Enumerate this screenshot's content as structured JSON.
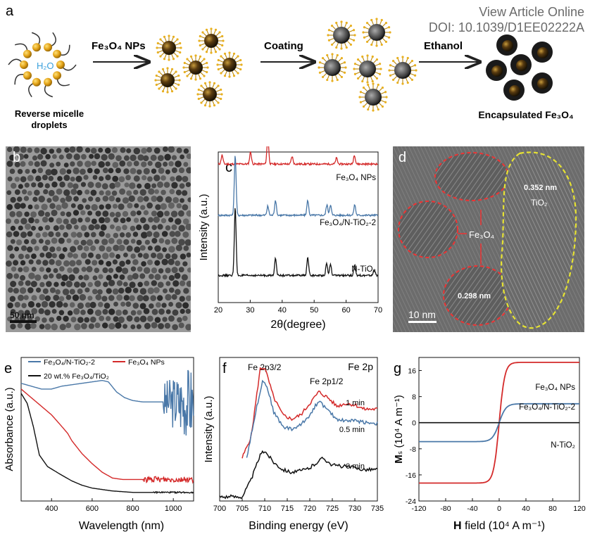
{
  "header": {
    "view_article": "View Article Online",
    "doi": "DOI: 10.1039/D1EE02222A"
  },
  "panel_a": {
    "letter": "a",
    "water_label": "H₂O",
    "arrow1_label": "Fe₃O₄ NPs",
    "arrow2_label": "Coating",
    "arrow3_label": "Ethanol",
    "caption_left_line1": "Reverse micelle",
    "caption_left_line2": "droplets",
    "caption_right": "Encapsulated Fe₃O₄"
  },
  "panel_b": {
    "letter": "b",
    "scale_bar": "50 nm"
  },
  "panel_d": {
    "letter": "d",
    "d1": "0.352 nm",
    "tio2": "TiO₂",
    "fe3o4": "Fe₃O₄",
    "d2": "0.298 nm",
    "scale_bar": "10 nm"
  },
  "colors": {
    "red": "#d42a2a",
    "blue": "#4a78a8",
    "black": "#111111",
    "yellow": "#e6e233"
  },
  "chart_data": [
    {
      "id": "c",
      "type": "line",
      "panel_letter": "c",
      "xlabel": "2θ(degree)",
      "ylabel": "Intensity (a.u.)",
      "xlim": [
        20,
        70
      ],
      "x_ticks": [
        20,
        30,
        40,
        50,
        60,
        70
      ],
      "series": [
        {
          "name": "Fe₃O₄ NPs",
          "color": "#d42a2a",
          "baseline": 0.92,
          "peaks": [
            [
              21.2,
              0.06
            ],
            [
              30.1,
              0.08
            ],
            [
              35.5,
              0.18
            ],
            [
              43.1,
              0.05
            ],
            [
              57.0,
              0.04
            ],
            [
              62.6,
              0.06
            ]
          ]
        },
        {
          "name": "Fe₃O₄/N-TiO₂-2",
          "color": "#4a78a8",
          "baseline": 0.58,
          "peaks": [
            [
              25.3,
              0.4
            ],
            [
              35.5,
              0.06
            ],
            [
              37.9,
              0.1
            ],
            [
              48.0,
              0.1
            ],
            [
              54.0,
              0.07
            ],
            [
              55.1,
              0.07
            ],
            [
              62.7,
              0.07
            ]
          ]
        },
        {
          "name": "N-TiO₂",
          "color": "#111111",
          "baseline": 0.18,
          "peaks": [
            [
              25.3,
              0.45
            ],
            [
              37.9,
              0.12
            ],
            [
              48.0,
              0.12
            ],
            [
              53.9,
              0.08
            ],
            [
              55.1,
              0.08
            ],
            [
              62.7,
              0.07
            ],
            [
              68.8,
              0.04
            ]
          ]
        }
      ]
    },
    {
      "id": "e",
      "type": "line",
      "panel_letter": "e",
      "xlabel": "Wavelength (nm)",
      "ylabel": "Absorbance (a.u.)",
      "xlim": [
        250,
        1100
      ],
      "x_ticks": [
        400,
        600,
        800,
        1000
      ],
      "legend": [
        "Fe₃O₄/N-TiO₂-2",
        "Fe₃O₄ NPs",
        "20 wt.% Fe₃O₄/TiO₂"
      ],
      "series": [
        {
          "name": "Fe₃O₄/N-TiO₂-2",
          "color": "#4a78a8",
          "points": [
            [
              250,
              0.82
            ],
            [
              300,
              0.8
            ],
            [
              350,
              0.78
            ],
            [
              400,
              0.78
            ],
            [
              450,
              0.8
            ],
            [
              500,
              0.81
            ],
            [
              550,
              0.82
            ],
            [
              600,
              0.83
            ],
            [
              650,
              0.84
            ],
            [
              680,
              0.83
            ],
            [
              720,
              0.76
            ],
            [
              760,
              0.72
            ],
            [
              800,
              0.7
            ],
            [
              850,
              0.69
            ],
            [
              900,
              0.69
            ],
            [
              950,
              0.69
            ]
          ],
          "noise_from": 950,
          "noise_amp": 0.14
        },
        {
          "name": "Fe₃O₄ NPs",
          "color": "#d42a2a",
          "points": [
            [
              250,
              0.78
            ],
            [
              300,
              0.72
            ],
            [
              350,
              0.66
            ],
            [
              400,
              0.6
            ],
            [
              450,
              0.52
            ],
            [
              480,
              0.47
            ],
            [
              500,
              0.42
            ],
            [
              550,
              0.33
            ],
            [
              600,
              0.26
            ],
            [
              650,
              0.2
            ],
            [
              700,
              0.16
            ],
            [
              750,
              0.15
            ],
            [
              800,
              0.15
            ],
            [
              900,
              0.15
            ],
            [
              1000,
              0.15
            ],
            [
              1100,
              0.15
            ]
          ],
          "noise_from": 850,
          "noise_amp": 0.02
        },
        {
          "name": "20 wt.% Fe₃O₄/TiO₂",
          "color": "#111111",
          "points": [
            [
              250,
              0.75
            ],
            [
              280,
              0.68
            ],
            [
              310,
              0.52
            ],
            [
              340,
              0.32
            ],
            [
              380,
              0.24
            ],
            [
              450,
              0.18
            ],
            [
              500,
              0.14
            ],
            [
              550,
              0.11
            ],
            [
              600,
              0.09
            ],
            [
              700,
              0.07
            ],
            [
              800,
              0.06
            ],
            [
              900,
              0.06
            ],
            [
              1000,
              0.06
            ],
            [
              1100,
              0.06
            ]
          ],
          "noise_from": 900,
          "noise_amp": 0.005
        }
      ]
    },
    {
      "id": "f",
      "type": "line",
      "panel_letter": "f",
      "xlabel": "Binding energy (eV)",
      "ylabel": "Intensity (a.u.)",
      "xlim": [
        700,
        735
      ],
      "x_ticks": [
        700,
        705,
        710,
        715,
        720,
        725,
        730,
        735
      ],
      "title_right": "Fe 2p",
      "peak_label_1": "Fe 2p3/2",
      "peak_label_2": "Fe 2p1/2",
      "series": [
        {
          "name": "1 min",
          "color": "#d42a2a",
          "points": [
            [
              705,
              0.3
            ],
            [
              707,
              0.45
            ],
            [
              709,
              0.92
            ],
            [
              710,
              0.93
            ],
            [
              712,
              0.72
            ],
            [
              714,
              0.6
            ],
            [
              716,
              0.57
            ],
            [
              718,
              0.6
            ],
            [
              720,
              0.68
            ],
            [
              722,
              0.76
            ],
            [
              724,
              0.72
            ],
            [
              726,
              0.66
            ],
            [
              728,
              0.68
            ],
            [
              730,
              0.67
            ],
            [
              732,
              0.64
            ],
            [
              735,
              0.64
            ]
          ]
        },
        {
          "name": "0.5 min",
          "color": "#4a78a8",
          "points": [
            [
              706,
              0.3
            ],
            [
              708,
              0.62
            ],
            [
              709.5,
              0.84
            ],
            [
              710.5,
              0.8
            ],
            [
              712,
              0.62
            ],
            [
              714,
              0.52
            ],
            [
              716,
              0.5
            ],
            [
              718,
              0.53
            ],
            [
              720,
              0.6
            ],
            [
              722,
              0.7
            ],
            [
              724,
              0.63
            ],
            [
              726,
              0.57
            ],
            [
              728,
              0.56
            ],
            [
              730,
              0.56
            ],
            [
              732,
              0.55
            ],
            [
              735,
              0.54
            ]
          ]
        },
        {
          "name": "0 min",
          "color": "#111111",
          "points": [
            [
              700,
              0.03
            ],
            [
              705,
              0.03
            ],
            [
              707,
              0.15
            ],
            [
              709,
              0.32
            ],
            [
              710,
              0.35
            ],
            [
              712,
              0.27
            ],
            [
              714,
              0.22
            ],
            [
              716,
              0.2
            ],
            [
              718,
              0.21
            ],
            [
              720,
              0.23
            ],
            [
              722,
              0.28
            ],
            [
              723,
              0.3
            ],
            [
              725,
              0.25
            ],
            [
              728,
              0.24
            ],
            [
              730,
              0.23
            ],
            [
              732,
              0.22
            ],
            [
              735,
              0.22
            ]
          ]
        }
      ]
    },
    {
      "id": "g",
      "type": "line",
      "panel_letter": "g",
      "xlabel_bold": "H",
      "xlabel_rest": " field (10⁴ A m⁻¹)",
      "ylabel_bold": "M",
      "ylabel_rest": "ₛ (10⁴ A m⁻¹)",
      "xlim": [
        -120,
        120
      ],
      "ylim": [
        -24,
        20
      ],
      "x_ticks": [
        -120,
        -80,
        -40,
        0,
        40,
        80,
        120
      ],
      "y_ticks": [
        -24,
        -16,
        -8,
        0,
        8,
        16
      ],
      "series": [
        {
          "name": "Fe₃O₄ NPs",
          "color": "#d42a2a",
          "ms": 18.5,
          "k": 0.12,
          "side": 1.0
        },
        {
          "name": "Fe₃O₄/N-TiO₂-2",
          "color": "#4a78a8",
          "ms": 5.8,
          "k": 0.1,
          "side": 1.0
        },
        {
          "name": "N-TiO₂",
          "color": "#111111",
          "ms": 0.0,
          "k": 0.1,
          "side": 1.0
        }
      ]
    }
  ]
}
